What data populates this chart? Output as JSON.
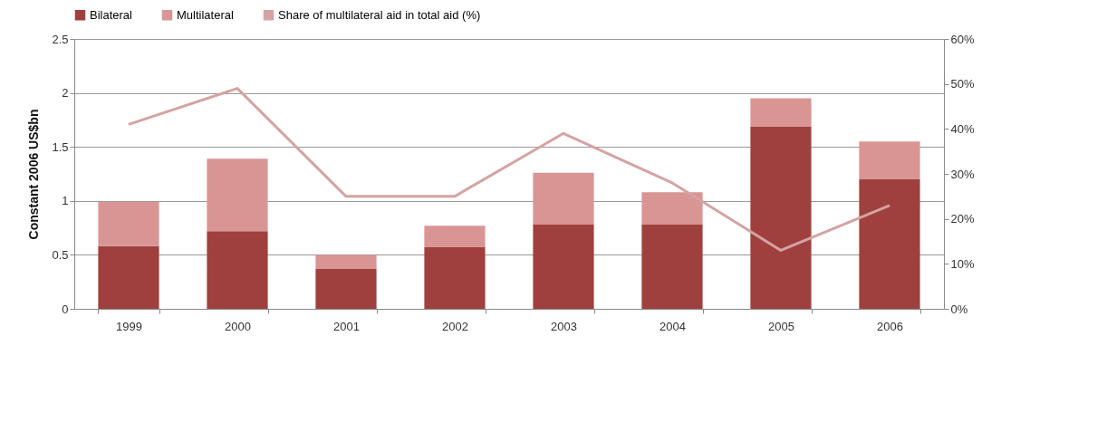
{
  "chart_data": {
    "type": "bar",
    "stacked": true,
    "ylabel": "Constant 2006 US$bn",
    "categories": [
      "1999",
      "2000",
      "2001",
      "2002",
      "2003",
      "2004",
      "2005",
      "2006"
    ],
    "series": [
      {
        "name": "Bilateral",
        "color": "#a0403e",
        "values": [
          0.58,
          0.72,
          0.37,
          0.57,
          0.78,
          0.78,
          1.69,
          1.2
        ]
      },
      {
        "name": "Multilateral",
        "color": "#d99594",
        "values": [
          0.41,
          0.67,
          0.13,
          0.2,
          0.48,
          0.3,
          0.26,
          0.35
        ]
      },
      {
        "name": "Share of multilateral aid in total aid (%)",
        "type": "line",
        "axis": "y2",
        "color": "#d4a3a3",
        "values": [
          41,
          49,
          25,
          25,
          39,
          28,
          13,
          23
        ]
      }
    ],
    "ylim": [
      0,
      2.5
    ],
    "yticks": [
      0,
      0.5,
      1,
      1.5,
      2,
      2.5
    ],
    "y2lim": [
      0,
      60
    ],
    "y2ticks": [
      {
        "value": 0,
        "label": "0%"
      },
      {
        "value": 10,
        "label": "10%"
      },
      {
        "value": 20,
        "label": "20%"
      },
      {
        "value": 30,
        "label": "30%"
      },
      {
        "value": 40,
        "label": "40%"
      },
      {
        "value": 50,
        "label": "50%"
      },
      {
        "value": 60,
        "label": "60%"
      }
    ],
    "grid": "y",
    "legend": "top"
  }
}
